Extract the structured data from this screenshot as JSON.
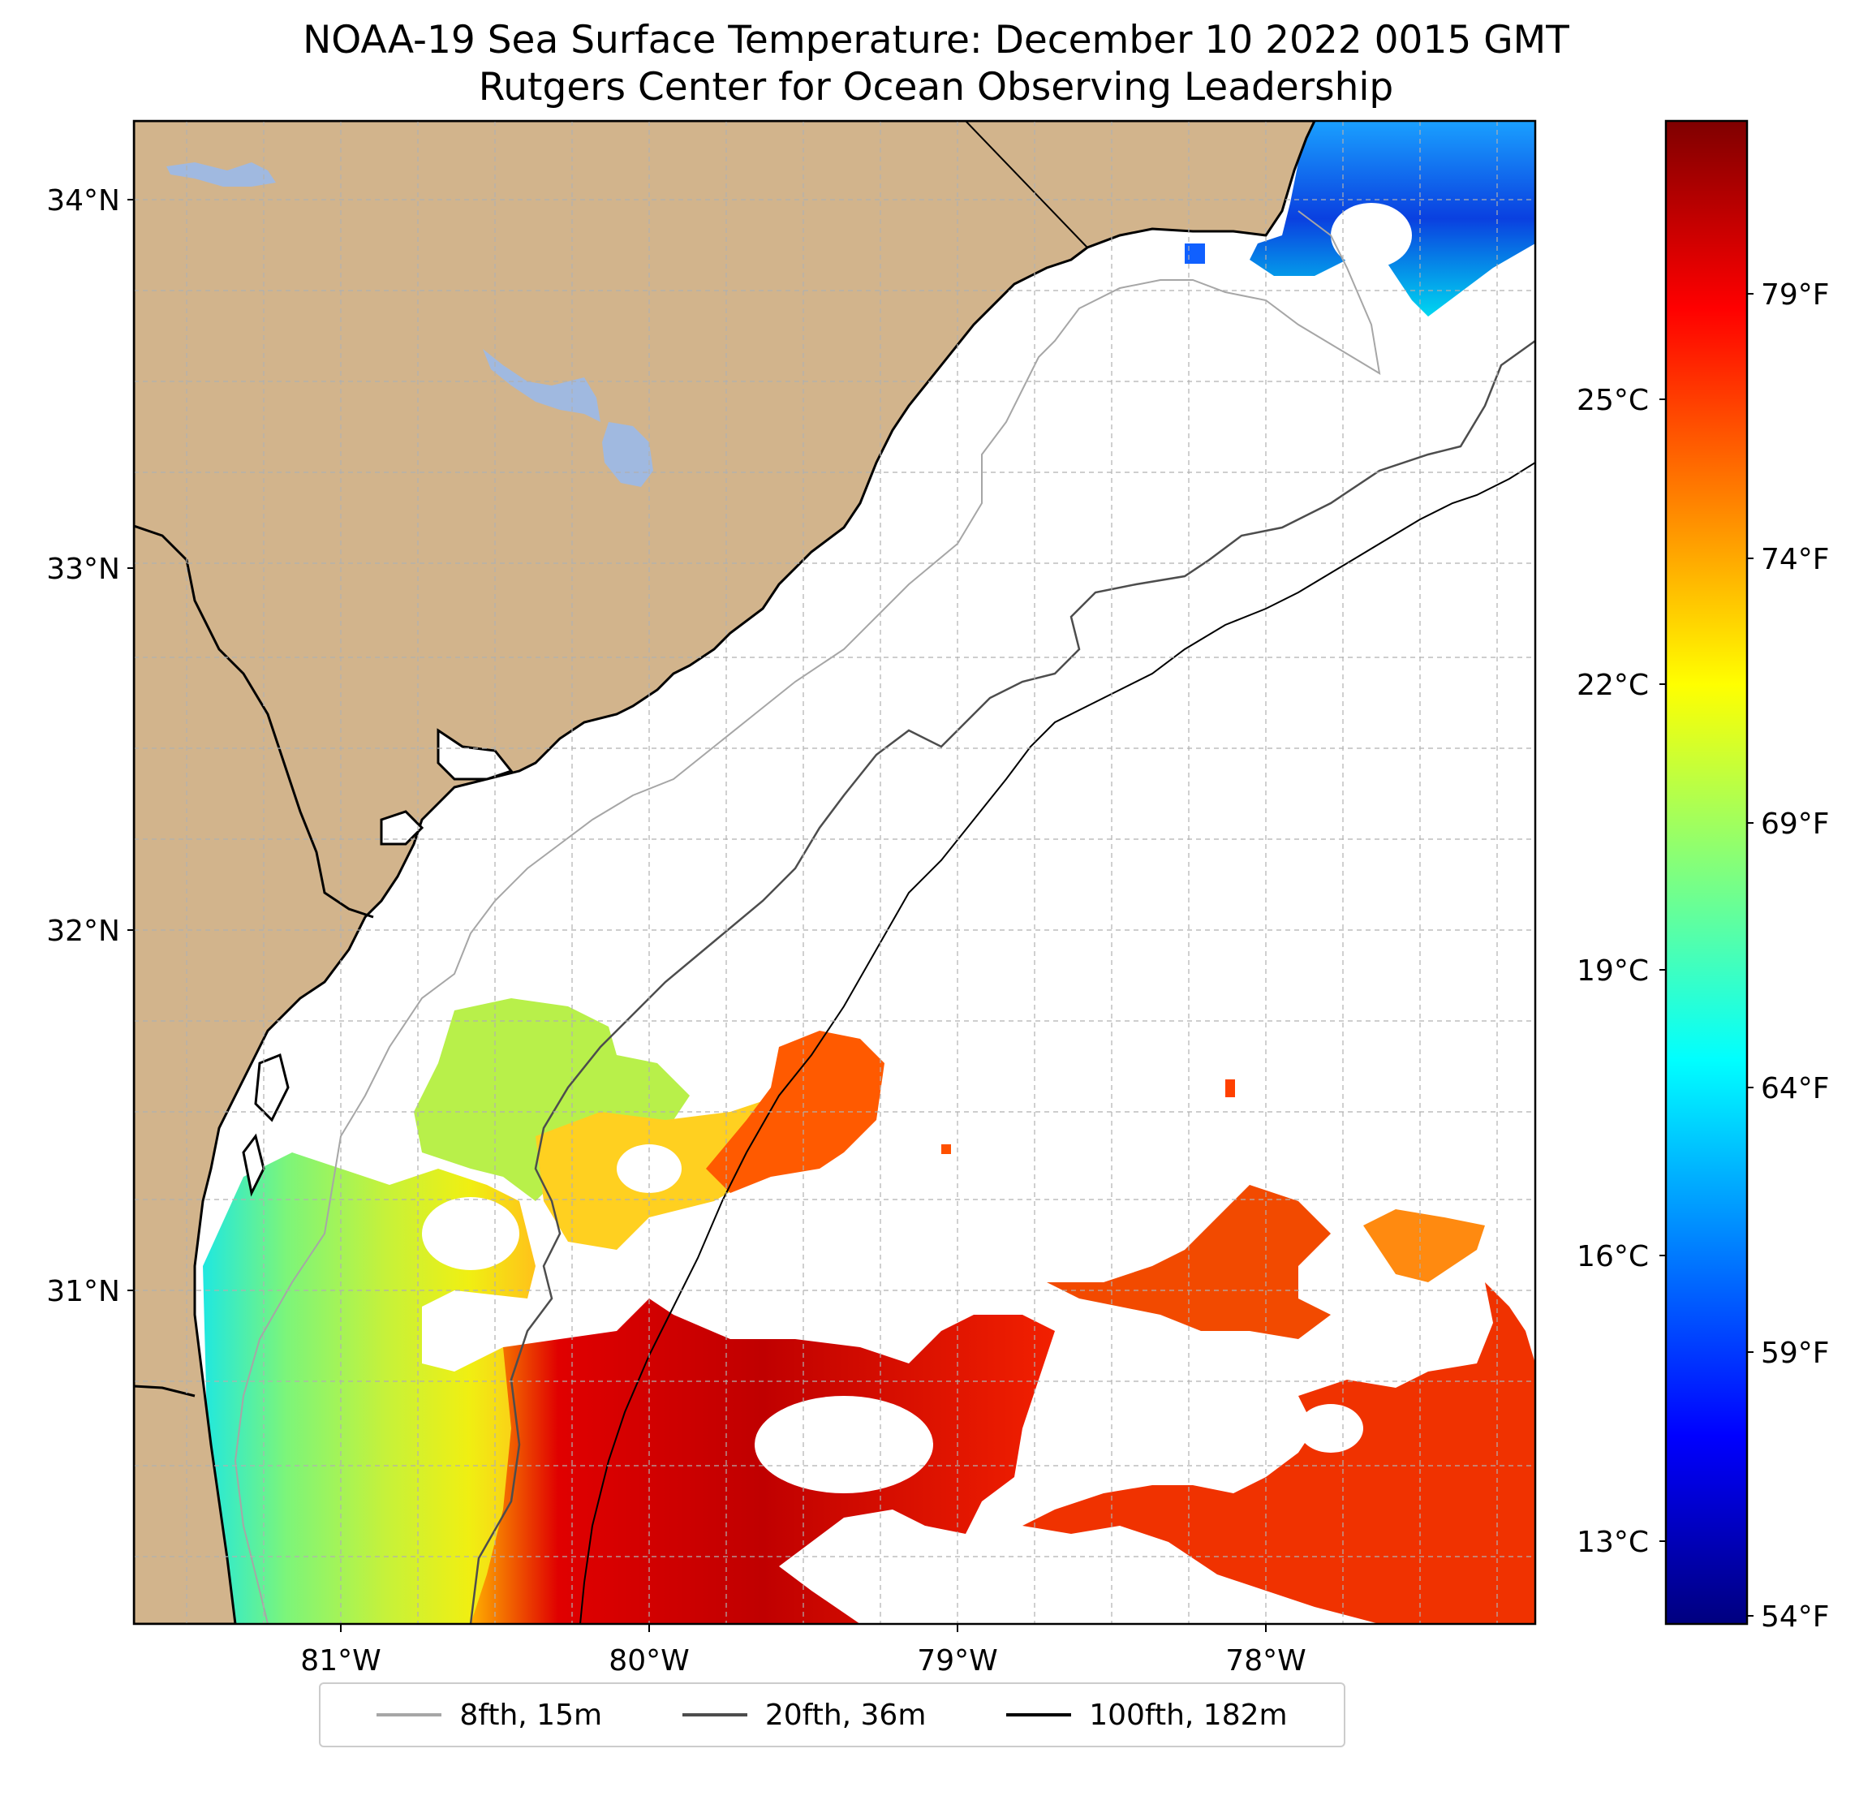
{
  "title": {
    "line1": "NOAA-19 Sea Surface Temperature: December 10 2022 0015 GMT",
    "line2": "Rutgers Center for Ocean Observing Leadership"
  },
  "map": {
    "land_color": "#d2b48c",
    "lake_color": "#a0b9e0",
    "lat_labels": [
      "34°N",
      "33°N",
      "32°N",
      "31°N"
    ],
    "lon_labels": [
      "81°W",
      "80°W",
      "79°W",
      "78°W"
    ]
  },
  "colorbar": {
    "celsius_labels": [
      "25°C",
      "22°C",
      "19°C",
      "16°C",
      "13°C"
    ],
    "fahrenheit_labels": [
      "79°F",
      "74°F",
      "69°F",
      "64°F",
      "59°F",
      "54°F"
    ],
    "colors": [
      "#00007f",
      "#0000ff",
      "#007fff",
      "#00ffff",
      "#7fff7f",
      "#ffff00",
      "#ff7f00",
      "#ff0000",
      "#7f0000"
    ]
  },
  "legend": {
    "items": [
      {
        "label": "8fth, 15m",
        "color": "#a6a6a6"
      },
      {
        "label": "20fth, 36m",
        "color": "#4d4d4d"
      },
      {
        "label": "100fth, 182m",
        "color": "#000000"
      }
    ]
  }
}
